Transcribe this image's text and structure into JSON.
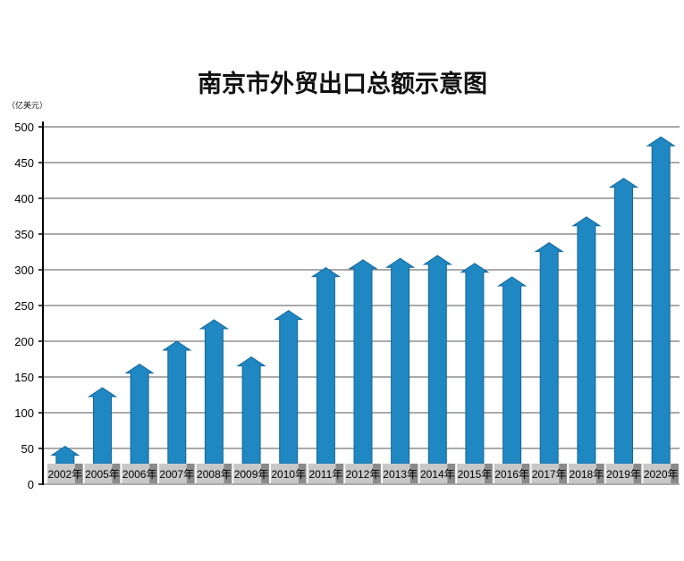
{
  "chart_data": {
    "type": "bar",
    "title": "南京市外贸出口总额示意图",
    "unit_label": "（亿美元）",
    "ylim": [
      0,
      500
    ],
    "yticks": [
      0,
      50,
      100,
      150,
      200,
      250,
      300,
      350,
      400,
      450,
      500
    ],
    "grid": true,
    "categories": [
      "2002年",
      "2005年",
      "2006年",
      "2007年",
      "2008年",
      "2009年",
      "2010年",
      "2011年",
      "2012年",
      "2013年",
      "2014年",
      "2015年",
      "2016年",
      "2017年",
      "2018年",
      "2019年",
      "2020年"
    ],
    "values": [
      53,
      135,
      168,
      200,
      230,
      178,
      243,
      303,
      314,
      316,
      320,
      309,
      290,
      338,
      374,
      428,
      486
    ],
    "colors": {
      "bar": "#1f87c2",
      "bar_edge": "#16679a",
      "label_bg": "#c8c8c8",
      "label_bg_alt": "#8a8a8a",
      "grid": "#555555",
      "axis": "#000000"
    }
  }
}
